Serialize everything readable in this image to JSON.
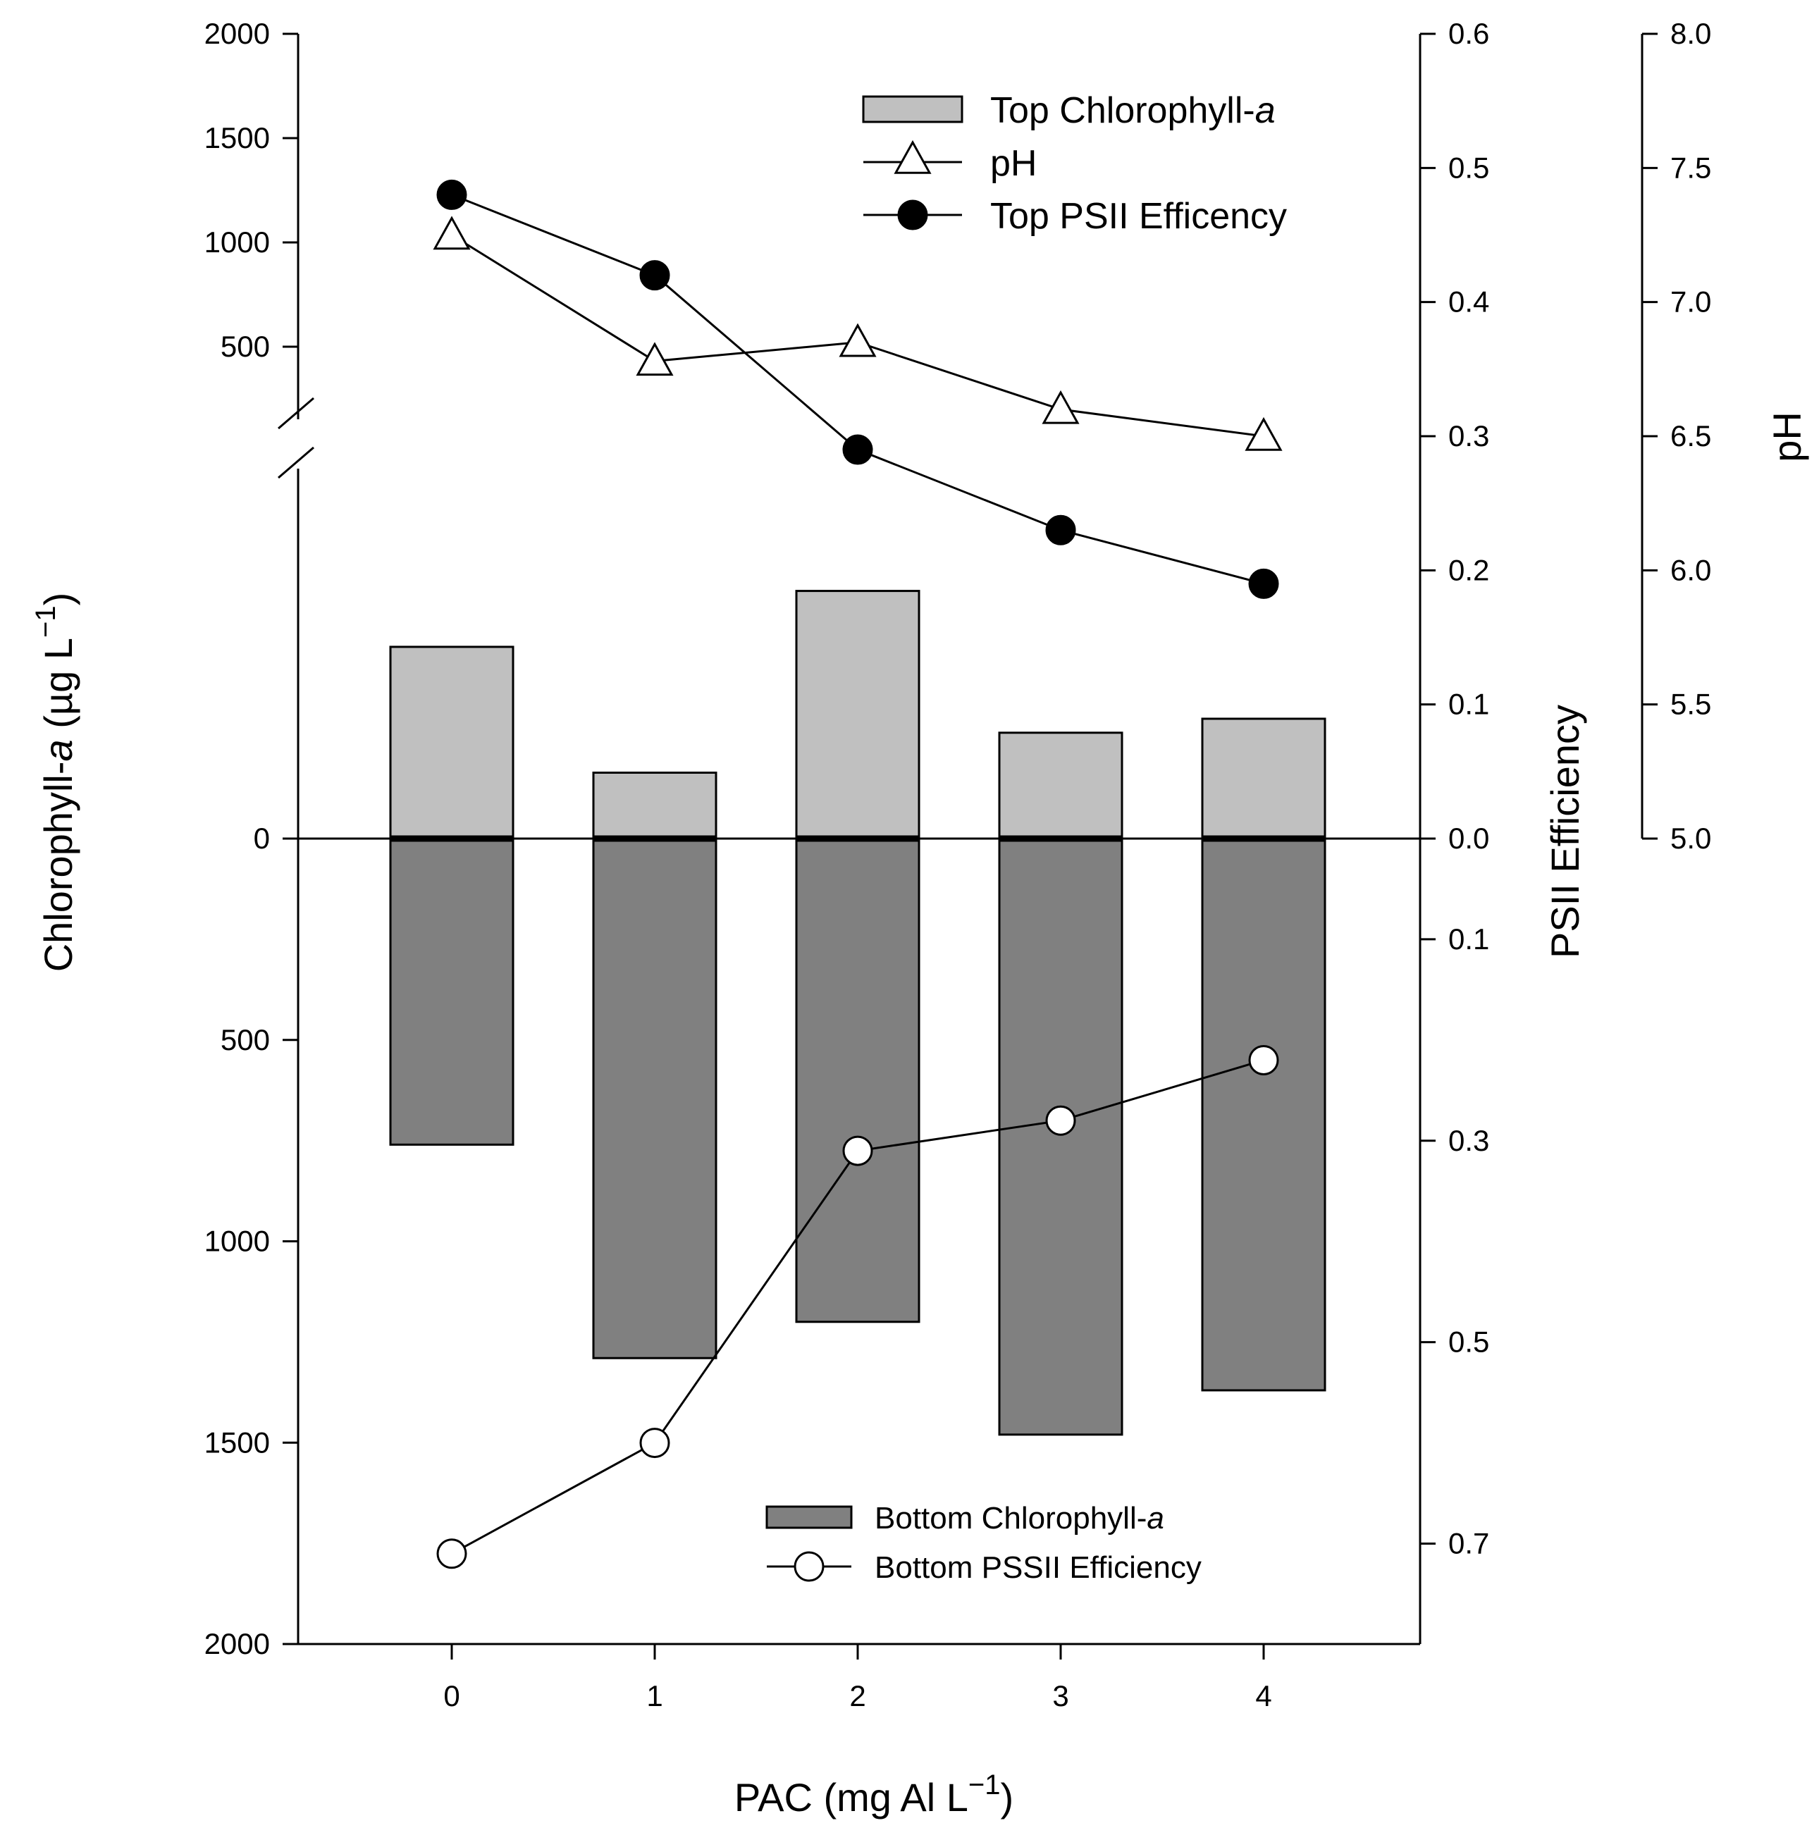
{
  "chart_data": {
    "type": "bar",
    "x": {
      "label": "PAC (mg Al  L",
      "label_sup": "−1",
      "label_close": ")",
      "categories": [
        "0",
        "1",
        "2",
        "3",
        "4"
      ],
      "values": [
        0,
        1,
        2,
        3,
        4
      ]
    },
    "y_left": {
      "label_prefix": "Chlorophyll-",
      "label_italic": "a",
      "label_units": " (µg L",
      "label_sup": "−1",
      "label_close": ")",
      "top_ticks": [
        500,
        1000,
        1500,
        2000
      ],
      "bottom_ticks": [
        0,
        500,
        1000,
        1500,
        2000
      ],
      "tick_labels_top": [
        "500",
        "1000",
        "1500",
        "2000"
      ],
      "tick_labels_bottom": [
        "0",
        "500",
        "1000",
        "1500",
        "2000"
      ],
      "broken": true
    },
    "y_right_psii": {
      "label": "PSII Efficiency",
      "top_ticks": [
        0.0,
        0.1,
        0.2,
        0.3,
        0.4,
        0.5,
        0.6
      ],
      "tick_labels_top": [
        "0.0",
        "0.1",
        "0.2",
        "0.3",
        "0.4",
        "0.5",
        "0.6"
      ],
      "bottom_ticks": [
        0.1,
        0.3,
        0.5,
        0.7
      ],
      "tick_labels_bottom": [
        "0.1",
        "0.3",
        "0.5",
        "0.7"
      ]
    },
    "y_right_ph": {
      "label": "pH",
      "ticks": [
        5.0,
        5.5,
        6.0,
        6.5,
        7.0,
        7.5,
        8.0
      ],
      "tick_labels": [
        "5.0",
        "5.5",
        "6.0",
        "6.5",
        "7.0",
        "7.5",
        "8.0"
      ]
    },
    "series": [
      {
        "key": "top_chl",
        "name_prefix": "Top Chlorophyll-",
        "name_italic": "a",
        "kind": "bar",
        "color": "#c0c0c0",
        "values": [
          960,
          330,
          1240,
          530,
          600
        ]
      },
      {
        "key": "bottom_chl",
        "name_prefix": "Bottom Chlorophyll-",
        "name_italic": "a",
        "kind": "bar",
        "color": "#808080",
        "values": [
          760,
          1290,
          1200,
          1480,
          1370
        ]
      },
      {
        "key": "ph",
        "name": "pH",
        "kind": "line",
        "marker": "open-triangle",
        "values": [
          7.25,
          6.78,
          6.85,
          6.6,
          6.5
        ]
      },
      {
        "key": "top_psii",
        "name": "Top PSII Efficency",
        "kind": "line",
        "marker": "filled-circle",
        "values": [
          0.48,
          0.42,
          0.29,
          0.23,
          0.19
        ]
      },
      {
        "key": "bottom_psii",
        "name": "Bottom PSSII Efficiency",
        "kind": "line",
        "marker": "open-circle",
        "values": [
          0.71,
          0.6,
          0.31,
          0.28,
          0.22
        ]
      }
    ],
    "legend_top_position": "top-right",
    "legend_bottom_position": "bottom-right",
    "grid": false
  }
}
